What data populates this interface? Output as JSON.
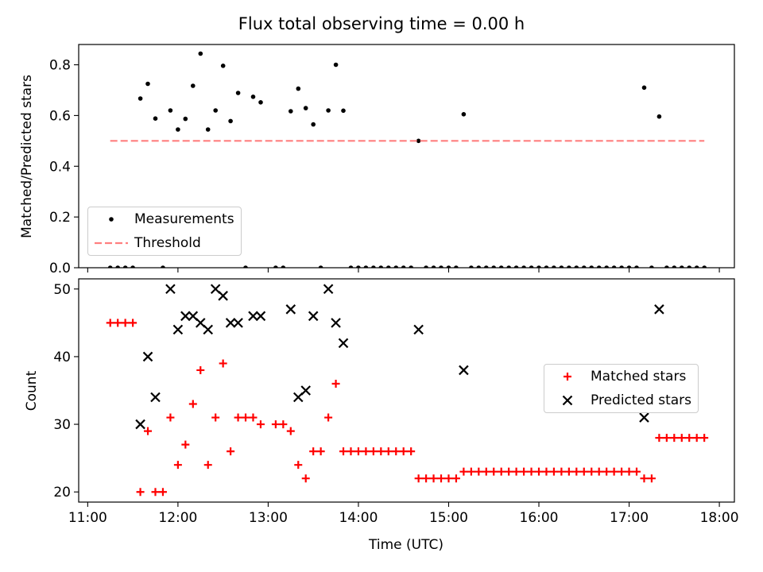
{
  "chart_data": [
    {
      "type": "scatter",
      "title": "Flux total observing time = 0.00 h",
      "xlabel": "",
      "ylabel": "Matched/Predicted stars",
      "ylim": [
        0,
        0.88
      ],
      "yticks": [
        "0.0",
        "0.2",
        "0.4",
        "0.6",
        "0.8"
      ],
      "legend_position": "lower-left",
      "grid": false,
      "series": [
        {
          "name": "Measurements",
          "marker": "dot",
          "color": "#000000",
          "points": [
            [
              "11:15",
              0.0
            ],
            [
              "11:20",
              0.0
            ],
            [
              "11:25",
              0.0
            ],
            [
              "11:30",
              0.0
            ],
            [
              "11:35",
              0.667
            ],
            [
              "11:40",
              0.725
            ],
            [
              "11:45",
              0.588
            ],
            [
              "11:50",
              0.0
            ],
            [
              "11:55",
              0.62
            ],
            [
              "12:00",
              0.545
            ],
            [
              "12:05",
              0.587
            ],
            [
              "12:10",
              0.717
            ],
            [
              "12:15",
              0.844
            ],
            [
              "12:20",
              0.545
            ],
            [
              "12:25",
              0.62
            ],
            [
              "12:30",
              0.796
            ],
            [
              "12:35",
              0.578
            ],
            [
              "12:40",
              0.689
            ],
            [
              "12:45",
              0.0
            ],
            [
              "12:50",
              0.674
            ],
            [
              "12:55",
              0.652
            ],
            [
              "13:05",
              0.0
            ],
            [
              "13:10",
              0.0
            ],
            [
              "13:15",
              0.617
            ],
            [
              "13:20",
              0.706
            ],
            [
              "13:25",
              0.629
            ],
            [
              "13:30",
              0.565
            ],
            [
              "13:35",
              0.0
            ],
            [
              "13:40",
              0.62
            ],
            [
              "13:45",
              0.8
            ],
            [
              "13:50",
              0.619
            ],
            [
              "13:55",
              0.0
            ],
            [
              "14:00",
              0.0
            ],
            [
              "14:05",
              0.0
            ],
            [
              "14:10",
              0.0
            ],
            [
              "14:15",
              0.0
            ],
            [
              "14:20",
              0.0
            ],
            [
              "14:25",
              0.0
            ],
            [
              "14:30",
              0.0
            ],
            [
              "14:35",
              0.0
            ],
            [
              "14:40",
              0.5
            ],
            [
              "14:45",
              0.0
            ],
            [
              "14:50",
              0.0
            ],
            [
              "14:55",
              0.0
            ],
            [
              "15:00",
              0.0
            ],
            [
              "15:05",
              0.0
            ],
            [
              "15:10",
              0.605
            ],
            [
              "15:15",
              0.0
            ],
            [
              "15:20",
              0.0
            ],
            [
              "15:25",
              0.0
            ],
            [
              "15:30",
              0.0
            ],
            [
              "15:35",
              0.0
            ],
            [
              "15:40",
              0.0
            ],
            [
              "15:45",
              0.0
            ],
            [
              "15:50",
              0.0
            ],
            [
              "15:55",
              0.0
            ],
            [
              "16:00",
              0.0
            ],
            [
              "16:05",
              0.0
            ],
            [
              "16:10",
              0.0
            ],
            [
              "16:15",
              0.0
            ],
            [
              "16:20",
              0.0
            ],
            [
              "16:25",
              0.0
            ],
            [
              "16:30",
              0.0
            ],
            [
              "16:35",
              0.0
            ],
            [
              "16:40",
              0.0
            ],
            [
              "16:45",
              0.0
            ],
            [
              "16:50",
              0.0
            ],
            [
              "16:55",
              0.0
            ],
            [
              "17:00",
              0.0
            ],
            [
              "17:05",
              0.0
            ],
            [
              "17:10",
              0.71
            ],
            [
              "17:15",
              0.0
            ],
            [
              "17:20",
              0.596
            ],
            [
              "17:25",
              0.0
            ],
            [
              "17:30",
              0.0
            ],
            [
              "17:35",
              0.0
            ],
            [
              "17:40",
              0.0
            ],
            [
              "17:45",
              0.0
            ],
            [
              "17:50",
              0.0
            ]
          ]
        },
        {
          "name": "Threshold",
          "style": "dashed-line",
          "color": "#ff7f7f",
          "points": [
            [
              "11:15",
              0.5
            ],
            [
              "17:50",
              0.5
            ]
          ]
        }
      ]
    },
    {
      "type": "scatter",
      "title": "",
      "xlabel": "Time (UTC)",
      "ylabel": "Count",
      "ylim": [
        18.5,
        51.5
      ],
      "yticks": [
        "20",
        "30",
        "40",
        "50"
      ],
      "xlim": [
        "10:54",
        "18:10"
      ],
      "xticks": [
        "11:00",
        "12:00",
        "13:00",
        "14:00",
        "15:00",
        "16:00",
        "17:00",
        "18:00"
      ],
      "legend_position": "center-right",
      "grid": false,
      "series": [
        {
          "name": "Matched stars",
          "marker": "plus",
          "color": "#ff0000",
          "points": [
            [
              "11:15",
              45
            ],
            [
              "11:20",
              45
            ],
            [
              "11:25",
              45
            ],
            [
              "11:30",
              45
            ],
            [
              "11:35",
              20
            ],
            [
              "11:40",
              29
            ],
            [
              "11:45",
              20
            ],
            [
              "11:50",
              20
            ],
            [
              "11:55",
              31
            ],
            [
              "12:00",
              24
            ],
            [
              "12:05",
              27
            ],
            [
              "12:10",
              33
            ],
            [
              "12:15",
              38
            ],
            [
              "12:20",
              24
            ],
            [
              "12:25",
              31
            ],
            [
              "12:30",
              39
            ],
            [
              "12:35",
              26
            ],
            [
              "12:40",
              31
            ],
            [
              "12:45",
              31
            ],
            [
              "12:50",
              31
            ],
            [
              "12:55",
              30
            ],
            [
              "13:05",
              30
            ],
            [
              "13:10",
              30
            ],
            [
              "13:15",
              29
            ],
            [
              "13:20",
              24
            ],
            [
              "13:25",
              22
            ],
            [
              "13:30",
              26
            ],
            [
              "13:35",
              26
            ],
            [
              "13:40",
              31
            ],
            [
              "13:45",
              36
            ],
            [
              "13:50",
              26
            ],
            [
              "13:55",
              26
            ],
            [
              "14:00",
              26
            ],
            [
              "14:05",
              26
            ],
            [
              "14:10",
              26
            ],
            [
              "14:15",
              26
            ],
            [
              "14:20",
              26
            ],
            [
              "14:25",
              26
            ],
            [
              "14:30",
              26
            ],
            [
              "14:35",
              26
            ],
            [
              "14:40",
              22
            ],
            [
              "14:45",
              22
            ],
            [
              "14:50",
              22
            ],
            [
              "14:55",
              22
            ],
            [
              "15:00",
              22
            ],
            [
              "15:05",
              22
            ],
            [
              "15:10",
              23
            ],
            [
              "15:15",
              23
            ],
            [
              "15:20",
              23
            ],
            [
              "15:25",
              23
            ],
            [
              "15:30",
              23
            ],
            [
              "15:35",
              23
            ],
            [
              "15:40",
              23
            ],
            [
              "15:45",
              23
            ],
            [
              "15:50",
              23
            ],
            [
              "15:55",
              23
            ],
            [
              "16:00",
              23
            ],
            [
              "16:05",
              23
            ],
            [
              "16:10",
              23
            ],
            [
              "16:15",
              23
            ],
            [
              "16:20",
              23
            ],
            [
              "16:25",
              23
            ],
            [
              "16:30",
              23
            ],
            [
              "16:35",
              23
            ],
            [
              "16:40",
              23
            ],
            [
              "16:45",
              23
            ],
            [
              "16:50",
              23
            ],
            [
              "16:55",
              23
            ],
            [
              "17:00",
              23
            ],
            [
              "17:05",
              23
            ],
            [
              "17:10",
              22
            ],
            [
              "17:15",
              22
            ],
            [
              "17:20",
              28
            ],
            [
              "17:25",
              28
            ],
            [
              "17:30",
              28
            ],
            [
              "17:35",
              28
            ],
            [
              "17:40",
              28
            ],
            [
              "17:45",
              28
            ],
            [
              "17:50",
              28
            ]
          ]
        },
        {
          "name": "Predicted stars",
          "marker": "x",
          "color": "#000000",
          "points": [
            [
              "11:35",
              30
            ],
            [
              "11:40",
              40
            ],
            [
              "11:45",
              34
            ],
            [
              "11:55",
              50
            ],
            [
              "12:00",
              44
            ],
            [
              "12:05",
              46
            ],
            [
              "12:10",
              46
            ],
            [
              "12:15",
              45
            ],
            [
              "12:20",
              44
            ],
            [
              "12:25",
              50
            ],
            [
              "12:30",
              49
            ],
            [
              "12:35",
              45
            ],
            [
              "12:40",
              45
            ],
            [
              "12:50",
              46
            ],
            [
              "12:55",
              46
            ],
            [
              "13:15",
              47
            ],
            [
              "13:20",
              34
            ],
            [
              "13:25",
              35
            ],
            [
              "13:30",
              46
            ],
            [
              "13:40",
              50
            ],
            [
              "13:45",
              45
            ],
            [
              "13:50",
              42
            ],
            [
              "14:40",
              44
            ],
            [
              "15:10",
              38
            ],
            [
              "17:10",
              31
            ],
            [
              "17:20",
              47
            ]
          ]
        }
      ]
    }
  ]
}
